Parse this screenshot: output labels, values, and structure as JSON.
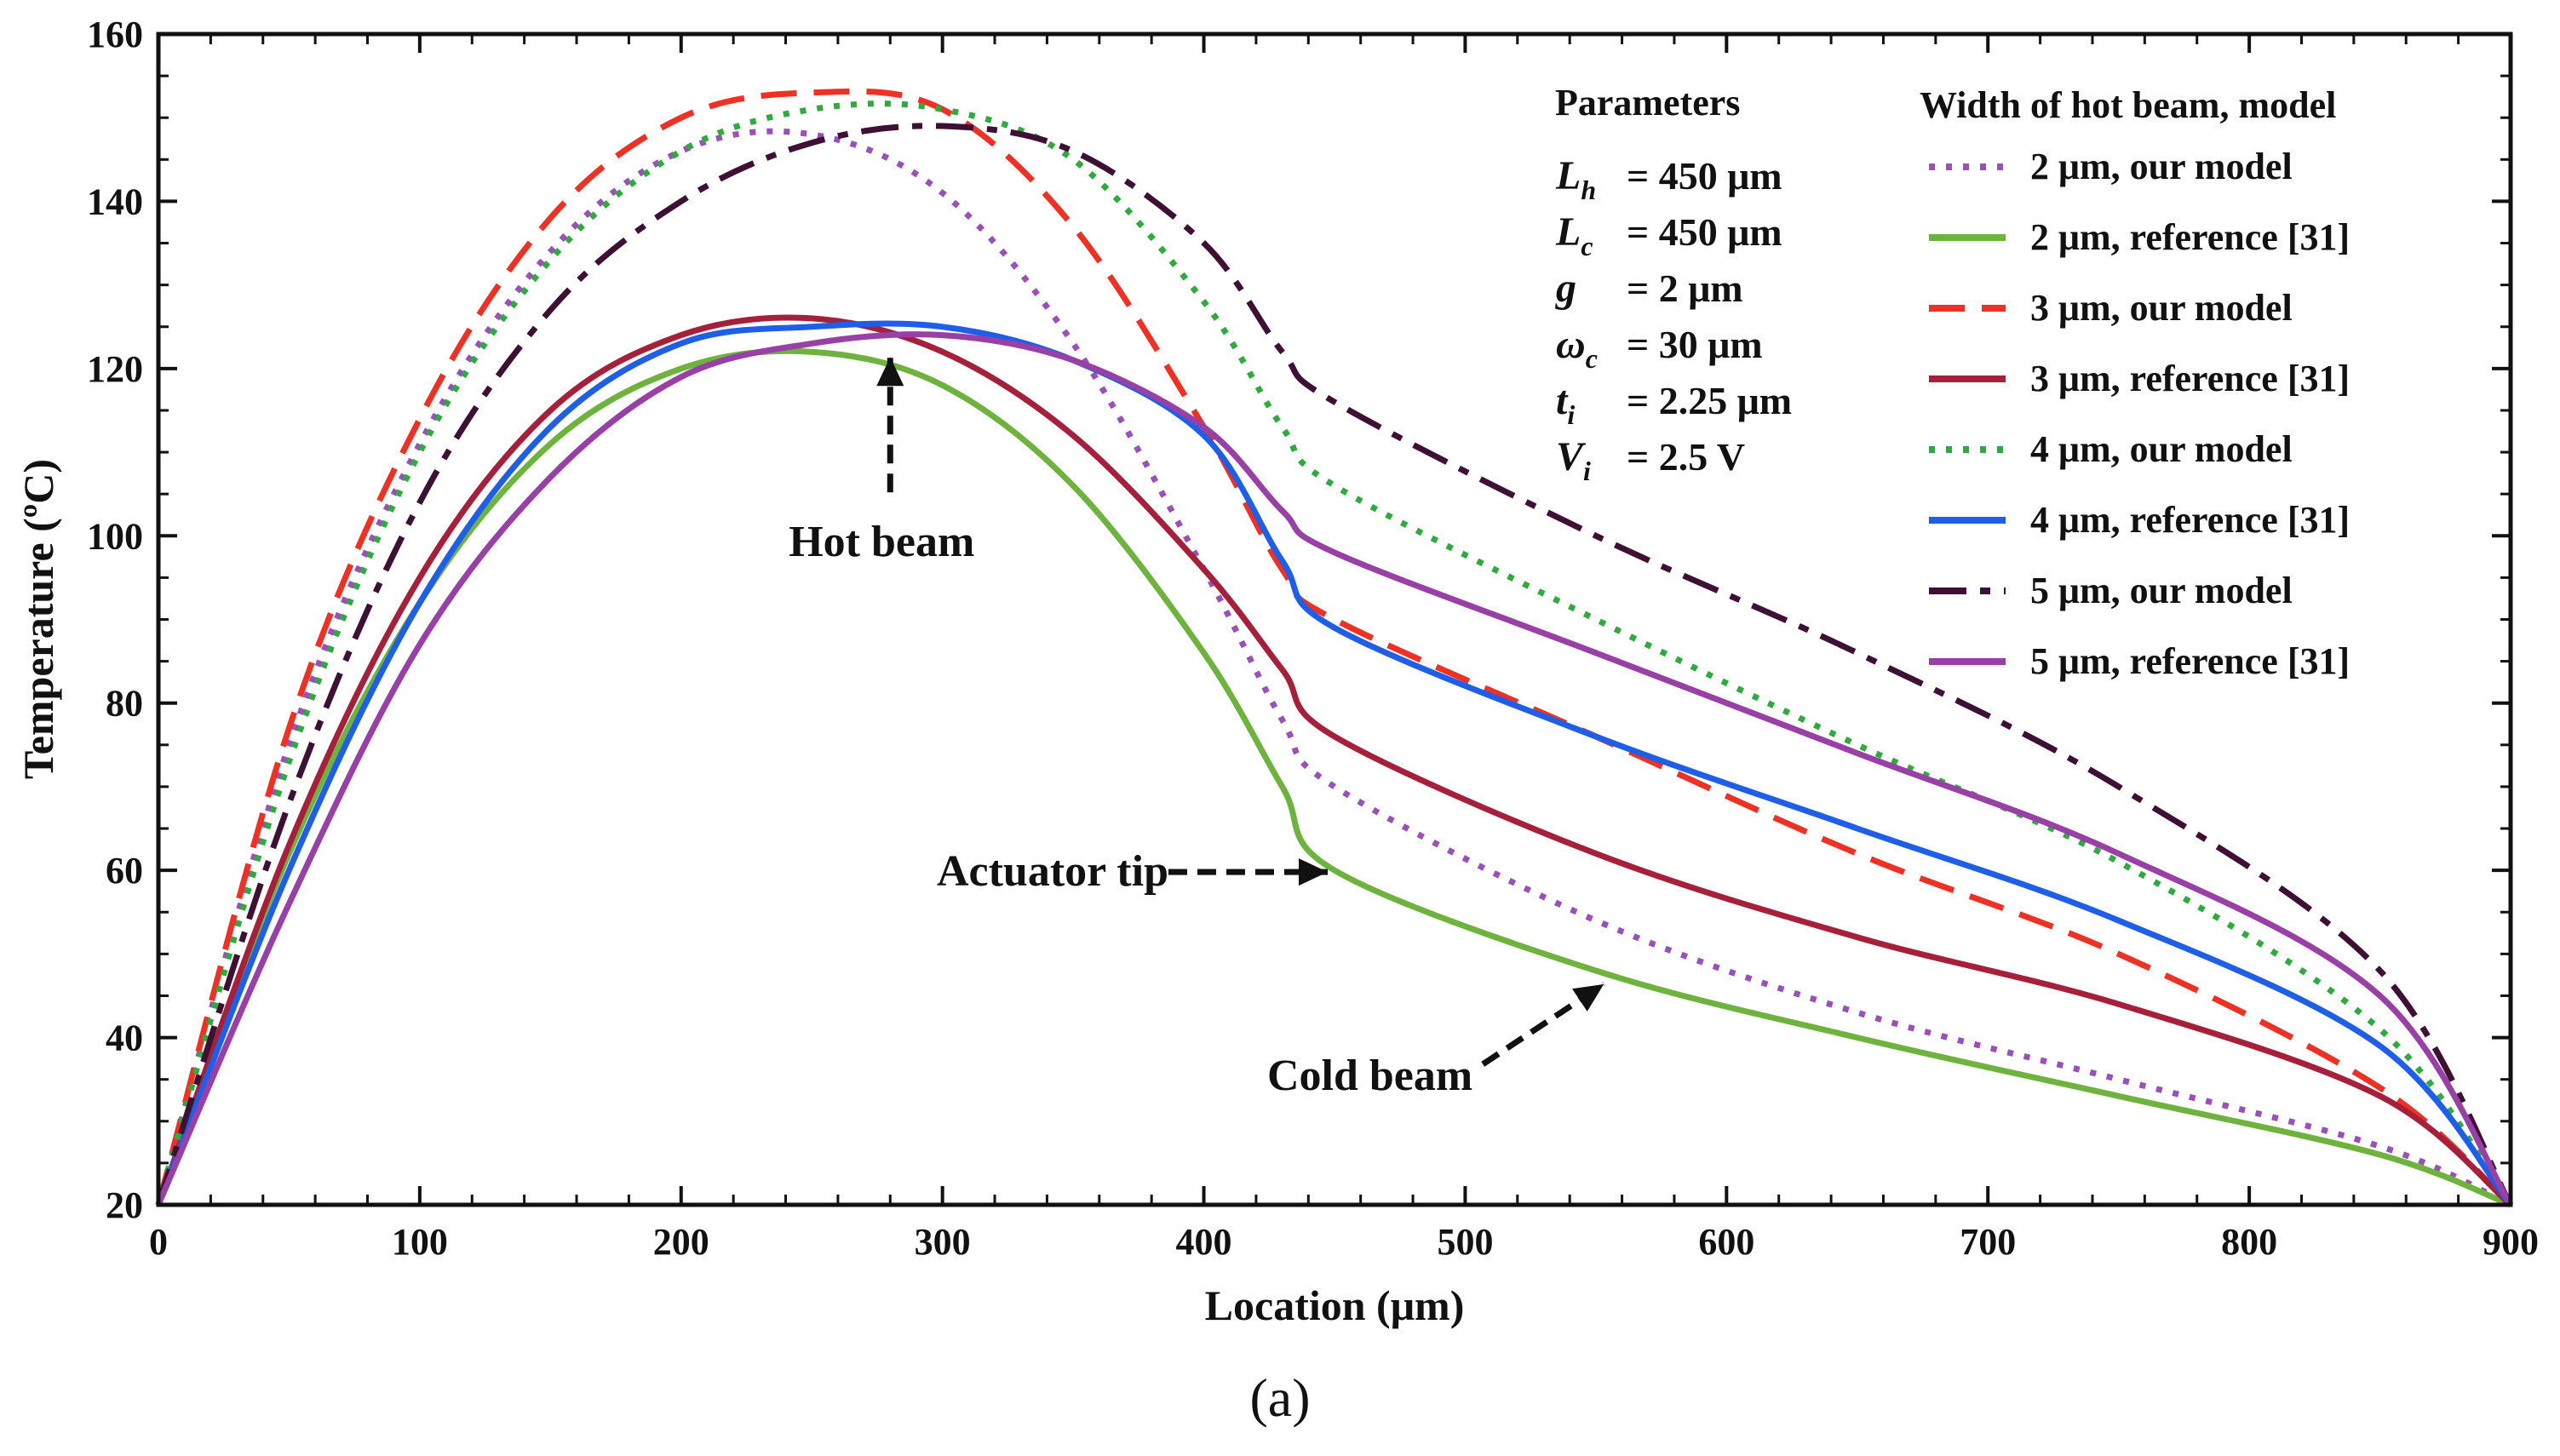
{
  "caption": "(a)",
  "chart_data": {
    "type": "line",
    "title": "",
    "xlabel": "Location (μm)",
    "ylabel": "Temperature (ºC)",
    "xlim": [
      0,
      900
    ],
    "ylim": [
      20,
      160
    ],
    "xticks": [
      0,
      100,
      200,
      300,
      400,
      500,
      600,
      700,
      800,
      900
    ],
    "yticks": [
      20,
      40,
      60,
      80,
      100,
      120,
      140,
      160
    ],
    "grid": false,
    "legend_title": "Width of hot beam, model",
    "legend_position": "top-right",
    "parameters_title": "Parameters",
    "parameters": [
      {
        "sym": "L",
        "sub": "h",
        "value": "= 450 μm"
      },
      {
        "sym": "L",
        "sub": "c",
        "value": "= 450 μm"
      },
      {
        "sym": "g",
        "sub": "",
        "value": "= 2 μm"
      },
      {
        "sym": "ω",
        "sub": "c",
        "value": "= 30 μm"
      },
      {
        "sym": "t",
        "sub": "i",
        "value": "= 2.25 μm"
      },
      {
        "sym": "V",
        "sub": "i",
        "value": "= 2.5 V"
      }
    ],
    "annotations": [
      {
        "text": "Hot beam",
        "x": 280,
        "y": 122
      },
      {
        "text": "Actuator tip",
        "x": 450,
        "y": 60
      },
      {
        "text": "Cold beam",
        "x": 555,
        "y": 47
      }
    ],
    "series": [
      {
        "name": "2 μm, our model",
        "color": "#9b4fb8",
        "style": "dotted",
        "x": [
          0,
          50,
          100,
          150,
          200,
          250,
          300,
          350,
          400,
          430,
          450,
          550,
          650,
          750,
          850,
          900
        ],
        "y": [
          20,
          75,
          111,
          134,
          146,
          148,
          141,
          123,
          96,
          78,
          70,
          54,
          43,
          35,
          27,
          20
        ]
      },
      {
        "name": "2 μm, reference [31]",
        "color": "#6fb33f",
        "style": "solid",
        "x": [
          0,
          50,
          100,
          150,
          200,
          250,
          300,
          350,
          400,
          430,
          450,
          550,
          650,
          750,
          850,
          900
        ],
        "y": [
          20,
          62,
          92,
          111,
          120,
          122,
          118,
          106,
          86,
          70,
          60,
          48,
          40,
          33,
          26,
          20
        ]
      },
      {
        "name": "3 μm, our model",
        "color": "#ee3124",
        "style": "dashed",
        "x": [
          0,
          50,
          100,
          150,
          200,
          250,
          300,
          350,
          400,
          430,
          450,
          550,
          650,
          750,
          850,
          900
        ],
        "y": [
          20,
          77,
          114,
          138,
          150,
          153,
          151,
          137,
          113,
          96,
          90,
          76,
          62,
          50,
          34,
          20
        ]
      },
      {
        "name": "3 μm, reference [31]",
        "color": "#a6203b",
        "style": "solid",
        "x": [
          0,
          50,
          100,
          150,
          200,
          250,
          300,
          350,
          400,
          430,
          450,
          550,
          650,
          750,
          850,
          900
        ],
        "y": [
          20,
          63,
          95,
          115,
          124,
          126,
          122,
          112,
          96,
          84,
          76,
          62,
          52,
          44,
          33,
          20
        ]
      },
      {
        "name": "4 μm, our model",
        "color": "#2eaa3e",
        "style": "dotted",
        "x": [
          0,
          50,
          100,
          150,
          200,
          250,
          300,
          350,
          400,
          430,
          450,
          550,
          650,
          750,
          850,
          900
        ],
        "y": [
          20,
          73,
          110,
          133,
          146,
          151,
          151,
          145,
          128,
          113,
          106,
          90,
          75,
          61,
          41,
          20
        ]
      },
      {
        "name": "4 μm, reference [31]",
        "color": "#1f5fe8",
        "style": "solid",
        "x": [
          0,
          50,
          100,
          150,
          200,
          250,
          300,
          350,
          400,
          430,
          450,
          550,
          650,
          750,
          850,
          900
        ],
        "y": [
          20,
          60,
          92,
          113,
          123,
          125,
          125,
          121,
          112,
          97,
          89,
          76,
          65,
          54,
          39,
          20
        ]
      },
      {
        "name": "5 μm, our model",
        "color": "#3d1034",
        "style": "dashdot",
        "x": [
          0,
          50,
          100,
          150,
          200,
          250,
          300,
          350,
          400,
          430,
          450,
          550,
          650,
          750,
          850,
          900
        ],
        "y": [
          20,
          68,
          104,
          127,
          140,
          147,
          149,
          146,
          135,
          122,
          116,
          100,
          86,
          70,
          48,
          20
        ]
      },
      {
        "name": "5 μm, reference [31]",
        "color": "#9840a6",
        "style": "solid",
        "x": [
          0,
          50,
          100,
          150,
          200,
          250,
          300,
          350,
          400,
          430,
          450,
          550,
          650,
          750,
          850,
          900
        ],
        "y": [
          20,
          56,
          87,
          107,
          119,
          123,
          124,
          121,
          113,
          103,
          98,
          86,
          74,
          62,
          45,
          20
        ]
      }
    ]
  }
}
